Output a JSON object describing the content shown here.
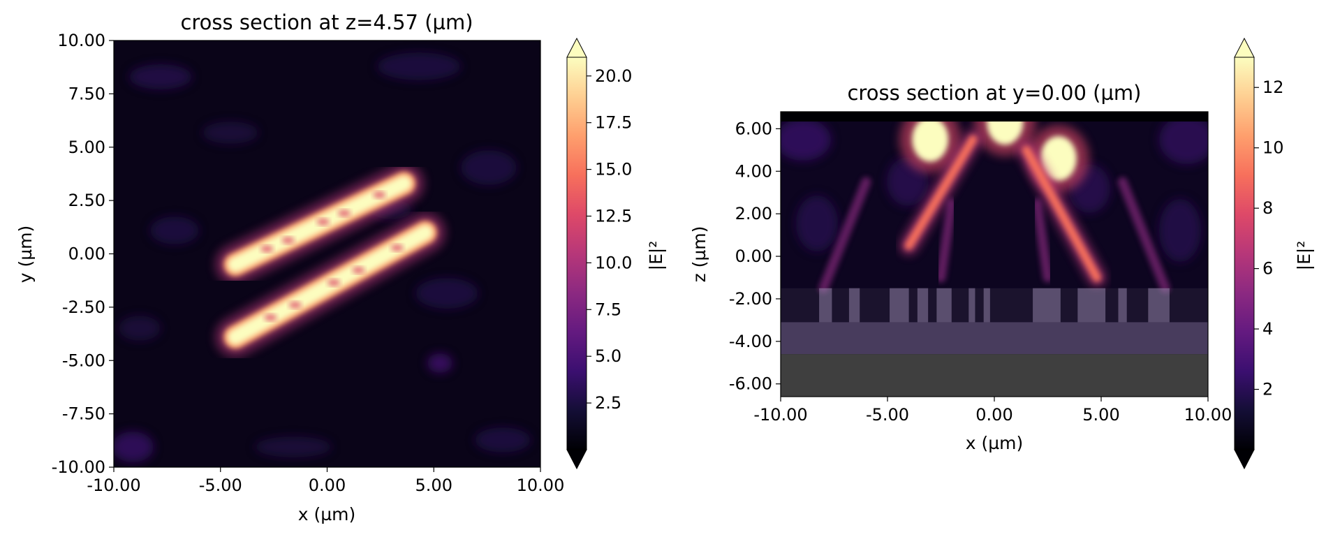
{
  "chart_data": [
    {
      "type": "heatmap",
      "title": "cross section at z=4.57 (µm)",
      "xlabel": "x (µm)",
      "ylabel": "y (µm)",
      "xlim": [
        -10,
        10
      ],
      "ylim": [
        -10,
        10
      ],
      "xticks": [
        "-10.00",
        "-5.00",
        "0.00",
        "5.00",
        "10.00"
      ],
      "yticks": [
        "10.00",
        "7.50",
        "5.00",
        "2.50",
        "0.00",
        "-2.50",
        "-5.00",
        "-7.50",
        "-10.00"
      ],
      "colorbar": {
        "label": "|E|²",
        "colormap": "magma",
        "range": [
          0,
          21
        ],
        "extend": "both",
        "ticks": [
          "20.0",
          "17.5",
          "15.0",
          "12.5",
          "10.0",
          "7.5",
          "5.0",
          "2.5"
        ]
      },
      "features": [
        {
          "shape": "diagonal bright band",
          "from": [
            -4.3,
            -0.5
          ],
          "to": [
            3.6,
            3.3
          ],
          "peak": 21
        },
        {
          "shape": "diagonal bright band",
          "from": [
            -4.3,
            -3.9
          ],
          "to": [
            4.6,
            1.0
          ],
          "peak": 21
        }
      ]
    },
    {
      "type": "heatmap",
      "title": "cross section at y=0.00 (µm)",
      "xlabel": "x (µm)",
      "ylabel": "z (µm)",
      "xlim": [
        -10,
        10
      ],
      "ylim": [
        -6.6,
        6.8
      ],
      "xticks": [
        "-10.00",
        "-5.00",
        "0.00",
        "5.00",
        "10.00"
      ],
      "yticks": [
        "6.00",
        "4.00",
        "2.00",
        "0.00",
        "-2.00",
        "-4.00",
        "-6.00"
      ],
      "colorbar": {
        "label": "|E|²",
        "colormap": "magma",
        "range": [
          0,
          13
        ],
        "extend": "both",
        "ticks": [
          "12",
          "10",
          "8",
          "6",
          "4",
          "2"
        ]
      },
      "structures": {
        "substrate_z": [
          -6.6,
          -4.6
        ],
        "layer_z": [
          -4.6,
          -3.1
        ],
        "grating_z": [
          -3.1,
          -1.5
        ],
        "grating_pillars_x": [
          [
            -8.2,
            -7.6
          ],
          [
            -6.8,
            -6.3
          ],
          [
            -4.9,
            -4.0
          ],
          [
            -3.6,
            -3.1
          ],
          [
            -2.7,
            -2.0
          ],
          [
            -1.2,
            -0.9
          ],
          [
            -0.5,
            -0.2
          ],
          [
            1.8,
            3.1
          ],
          [
            3.9,
            5.2
          ],
          [
            5.8,
            6.2
          ],
          [
            7.2,
            8.2
          ]
        ]
      },
      "features": [
        {
          "shape": "bright lobe",
          "x": -3.0,
          "z": 5.5,
          "peak": 13
        },
        {
          "shape": "bright lobe",
          "x": 3.0,
          "z": 4.6,
          "peak": 13
        },
        {
          "shape": "bright lobe",
          "x": 0.5,
          "z": 6.3,
          "peak": 13
        },
        {
          "shape": "diagonal streak",
          "from": [
            -1.0,
            5.5
          ],
          "to": [
            -4.0,
            0.5
          ],
          "peak": 9
        },
        {
          "shape": "diagonal streak",
          "from": [
            1.5,
            5.0
          ],
          "to": [
            4.8,
            -1.0
          ],
          "peak": 10
        }
      ]
    }
  ]
}
